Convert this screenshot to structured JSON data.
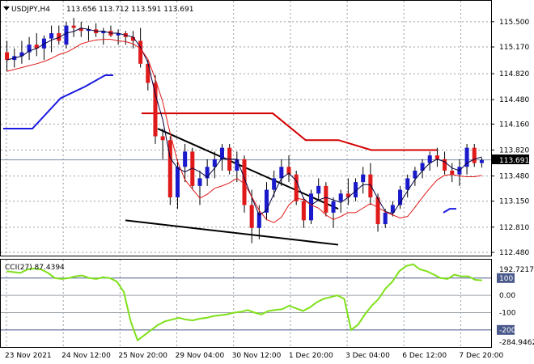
{
  "header": {
    "symbol_label": "USDJPY,H4",
    "ohlc_label": "113.656 113.712 113.591 113.691"
  },
  "indicator": {
    "label": "CCI(27) 87.4394",
    "max_label": "192.7217",
    "min_label": "-284.9462",
    "levels": [
      {
        "value": 100,
        "label": "100",
        "highlighted": true
      },
      {
        "value": 0,
        "label": "0.00",
        "highlighted": false
      },
      {
        "value": -100,
        "label": "-100",
        "highlighted": false
      },
      {
        "value": -200,
        "label": "-200",
        "highlighted": true
      }
    ]
  },
  "price_axis": {
    "ticks": [
      "115.500",
      "115.170",
      "114.820",
      "114.480",
      "114.160",
      "113.820",
      "113.480",
      "113.150",
      "112.810",
      "112.480"
    ],
    "current_price_label": "113.691"
  },
  "time_axis": {
    "labels": [
      "23 Nov 2021",
      "24 Nov 12:00",
      "25 Nov 20:00",
      "29 Nov 04:00",
      "30 Nov 12:00",
      "1 Dec 20:00",
      "3 Dec 04:00",
      "6 Dec 12:00",
      "7 Dec 20:00"
    ]
  },
  "colors": {
    "bull": "#1a1acc",
    "bear": "#e01a1a",
    "grid": "#9aa0a6",
    "resistance": "#d40000",
    "support_line": "#1a1ae0",
    "cci": "#7fe01a",
    "level_box": "#4a5a8a"
  },
  "chart_data": [
    {
      "type": "candlestick",
      "title": "USDJPY,H4",
      "ylim": [
        112.48,
        115.7
      ],
      "x": [
        "23 Nov 2021",
        "24 Nov 12:00",
        "25 Nov 20:00",
        "29 Nov 04:00",
        "30 Nov 12:00",
        "1 Dec 20:00",
        "3 Dec 04:00",
        "6 Dec 12:00",
        "7 Dec 20:00"
      ],
      "ohlc": [
        [
          115.1,
          115.25,
          114.85,
          115.0
        ],
        [
          115.0,
          115.15,
          114.9,
          115.05
        ],
        [
          115.05,
          115.25,
          114.95,
          115.1
        ],
        [
          115.1,
          115.3,
          115.0,
          115.2
        ],
        [
          115.2,
          115.35,
          115.05,
          115.15
        ],
        [
          115.15,
          115.32,
          115.0,
          115.28
        ],
        [
          115.28,
          115.45,
          115.1,
          115.35
        ],
        [
          115.35,
          115.45,
          115.2,
          115.25
        ],
        [
          115.2,
          115.5,
          115.15,
          115.45
        ],
        [
          115.45,
          115.55,
          115.3,
          115.42
        ],
        [
          115.42,
          115.5,
          115.3,
          115.38
        ],
        [
          115.38,
          115.45,
          115.25,
          115.4
        ],
        [
          115.4,
          115.48,
          115.3,
          115.35
        ],
        [
          115.35,
          115.42,
          115.2,
          115.38
        ],
        [
          115.38,
          115.45,
          115.3,
          115.32
        ],
        [
          115.32,
          115.4,
          115.2,
          115.35
        ],
        [
          115.35,
          115.38,
          115.2,
          115.3
        ],
        [
          115.3,
          115.38,
          115.15,
          115.25
        ],
        [
          115.25,
          115.42,
          114.9,
          114.95
        ],
        [
          114.95,
          115.0,
          114.6,
          114.7
        ],
        [
          114.7,
          114.8,
          113.9,
          114.0
        ],
        [
          114.0,
          114.1,
          113.7,
          113.95
        ],
        [
          113.95,
          114.0,
          113.1,
          113.2
        ],
        [
          113.2,
          113.7,
          113.05,
          113.6
        ],
        [
          113.6,
          113.9,
          113.4,
          113.8
        ],
        [
          113.8,
          113.85,
          113.3,
          113.35
        ],
        [
          113.35,
          113.55,
          113.1,
          113.45
        ],
        [
          113.45,
          113.7,
          113.35,
          113.6
        ],
        [
          113.6,
          113.8,
          113.45,
          113.7
        ],
        [
          113.7,
          113.9,
          113.55,
          113.85
        ],
        [
          113.85,
          113.9,
          113.5,
          113.55
        ],
        [
          113.55,
          113.8,
          113.4,
          113.7
        ],
        [
          113.7,
          113.75,
          113.0,
          113.1
        ],
        [
          113.1,
          113.3,
          112.6,
          112.8
        ],
        [
          112.8,
          113.1,
          112.65,
          113.0
        ],
        [
          113.0,
          113.4,
          112.9,
          113.3
        ],
        [
          113.3,
          113.55,
          113.2,
          113.45
        ],
        [
          113.45,
          113.7,
          113.35,
          113.6
        ],
        [
          113.6,
          113.75,
          113.4,
          113.5
        ],
        [
          113.5,
          113.55,
          113.1,
          113.15
        ],
        [
          113.15,
          113.2,
          112.8,
          112.9
        ],
        [
          112.9,
          113.3,
          112.85,
          113.25
        ],
        [
          113.25,
          113.45,
          113.15,
          113.35
        ],
        [
          113.35,
          113.4,
          112.95,
          113.0
        ],
        [
          113.0,
          113.2,
          112.8,
          113.15
        ],
        [
          113.15,
          113.3,
          113.0,
          113.25
        ],
        [
          113.25,
          113.45,
          113.1,
          113.2
        ],
        [
          113.2,
          113.45,
          113.15,
          113.4
        ],
        [
          113.4,
          113.6,
          113.25,
          113.5
        ],
        [
          113.5,
          113.65,
          113.1,
          113.2
        ],
        [
          113.2,
          113.25,
          112.75,
          112.85
        ],
        [
          112.85,
          113.05,
          112.8,
          113.0
        ],
        [
          113.0,
          113.15,
          112.95,
          113.1
        ],
        [
          113.1,
          113.35,
          113.05,
          113.3
        ],
        [
          113.3,
          113.5,
          113.2,
          113.45
        ],
        [
          113.45,
          113.6,
          113.35,
          113.55
        ],
        [
          113.55,
          113.7,
          113.45,
          113.65
        ],
        [
          113.65,
          113.8,
          113.55,
          113.75
        ],
        [
          113.75,
          113.85,
          113.6,
          113.7
        ],
        [
          113.7,
          113.8,
          113.5,
          113.55
        ],
        [
          113.55,
          113.65,
          113.4,
          113.5
        ],
        [
          113.5,
          113.7,
          113.35,
          113.6
        ],
        [
          113.6,
          113.9,
          113.5,
          113.85
        ],
        [
          113.85,
          113.9,
          113.6,
          113.65
        ],
        [
          113.65,
          113.72,
          113.59,
          113.69
        ]
      ],
      "overlays": [
        {
          "kind": "resistance_step",
          "values": [
            114.3,
            114.3,
            114.3,
            114.3,
            114.3,
            113.95,
            113.95,
            113.82,
            113.82,
            113.82
          ]
        }
      ]
    },
    {
      "type": "line",
      "title": "CCI(27) 87.4394",
      "ylim": [
        -284.9462,
        192.7217
      ],
      "values": [
        140,
        135,
        130,
        150,
        155,
        150,
        130,
        100,
        95,
        100,
        110,
        115,
        100,
        95,
        105,
        100,
        80,
        20,
        -150,
        -260,
        -230,
        -200,
        -170,
        -150,
        -140,
        -130,
        -140,
        -145,
        -135,
        -130,
        -120,
        -115,
        -110,
        -100,
        -95,
        -85,
        -100,
        -110,
        -90,
        -85,
        -80,
        -60,
        -75,
        -90,
        -70,
        -40,
        -20,
        -10,
        0,
        -20,
        -200,
        -170,
        -110,
        -60,
        -20,
        40,
        80,
        140,
        170,
        180,
        150,
        140,
        120,
        100,
        95,
        120,
        110,
        110,
        90,
        87
      ]
    }
  ]
}
